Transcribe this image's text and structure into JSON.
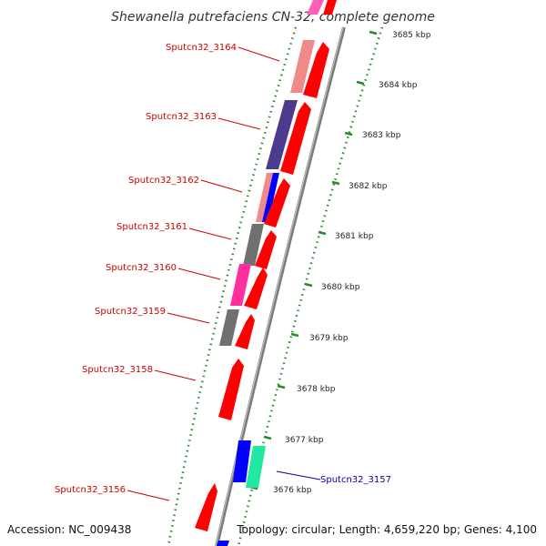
{
  "title": "Shewanella putrefaciens CN-32, complete genome",
  "footer": {
    "accession": "Accession: NC_009438",
    "topology": "Topology: circular; Length: 4,659,220 bp; Genes: 4,100"
  },
  "colors": {
    "forward_gene": "#ff0000",
    "backbone": "#8c8c8c",
    "tick_dots": "#2a8a2a",
    "reverse_label": "#cc0000",
    "forward_label": "#0000aa",
    "cog_salmon": "#f08a88",
    "cog_navy": "#4b3a8e",
    "cog_blue": "#0000ff",
    "cog_gray": "#707070",
    "cog_magenta": "#ff2fa0",
    "cog_mint": "#22e8a0",
    "cog_pink": "#ff5db8"
  },
  "scale_ticks": [
    "3685 kbp",
    "3684 kbp",
    "3683 kbp",
    "3682 kbp",
    "3681 kbp",
    "3680 kbp",
    "3679 kbp",
    "3678 kbp",
    "3677 kbp",
    "3676 kbp"
  ],
  "gene_labels": [
    {
      "text": "Sputcn32_3164",
      "strand": "reverse"
    },
    {
      "text": "Sputcn32_3163",
      "strand": "reverse"
    },
    {
      "text": "Sputcn32_3162",
      "strand": "reverse"
    },
    {
      "text": "Sputcn32_3161",
      "strand": "reverse"
    },
    {
      "text": "Sputcn32_3160",
      "strand": "reverse"
    },
    {
      "text": "Sputcn32_3159",
      "strand": "reverse"
    },
    {
      "text": "Sputcn32_3158",
      "strand": "reverse"
    },
    {
      "text": "Sputcn32_3157",
      "strand": "forward"
    },
    {
      "text": "Sputcn32_3156",
      "strand": "reverse"
    }
  ]
}
